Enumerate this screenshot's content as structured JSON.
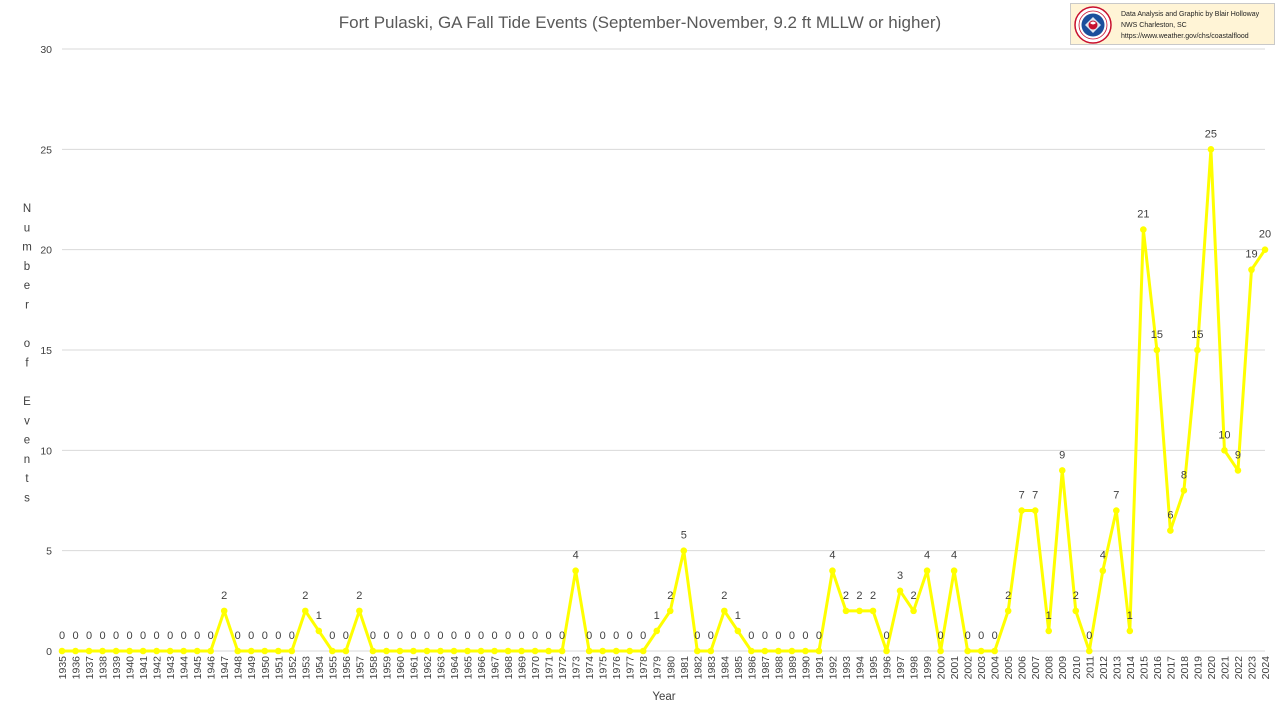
{
  "credit": {
    "line1": "Data Analysis and Graphic by Blair Holloway",
    "line2": "NWS Charleston, SC",
    "line3": "https://www.weather.gov/chs/coastalflood"
  },
  "chart_data": {
    "type": "line",
    "title": "Fort Pulaski, GA Fall Tide Events (September-November, 9.2 ft MLLW or higher)",
    "xlabel": "Year",
    "ylabel": "Number of Events",
    "ylim": [
      0,
      30
    ],
    "yticks": [
      0,
      5,
      10,
      15,
      20,
      25,
      30
    ],
    "grid": true,
    "legend": "none",
    "line_color": "#ffff00",
    "x": [
      "1935",
      "1936",
      "1937",
      "1938",
      "1939",
      "1940",
      "1941",
      "1942",
      "1943",
      "1944",
      "1945",
      "1946",
      "1947",
      "1948",
      "1949",
      "1950",
      "1951",
      "1952",
      "1953",
      "1954",
      "1955",
      "1956",
      "1957",
      "1958",
      "1959",
      "1960",
      "1961",
      "1962",
      "1963",
      "1964",
      "1965",
      "1966",
      "1967",
      "1968",
      "1969",
      "1970",
      "1971",
      "1972",
      "1973",
      "1974",
      "1975",
      "1976",
      "1977",
      "1978",
      "1979",
      "1980",
      "1981",
      "1982",
      "1983",
      "1984",
      "1985",
      "1986",
      "1987",
      "1988",
      "1989",
      "1990",
      "1991",
      "1992",
      "1993",
      "1994",
      "1995",
      "1996",
      "1997",
      "1998",
      "1999",
      "2000",
      "2001",
      "2002",
      "2003",
      "2004",
      "2005",
      "2006",
      "2007",
      "2008",
      "2009",
      "2010",
      "2011",
      "2012",
      "2013",
      "2014",
      "2015",
      "2016",
      "2017",
      "2018",
      "2019",
      "2020",
      "2021",
      "2022",
      "2023",
      "2024"
    ],
    "series": [
      {
        "values": [
          0,
          0,
          0,
          0,
          0,
          0,
          0,
          0,
          0,
          0,
          0,
          0,
          2,
          0,
          0,
          0,
          0,
          0,
          2,
          1,
          0,
          0,
          2,
          0,
          0,
          0,
          0,
          0,
          0,
          0,
          0,
          0,
          0,
          0,
          0,
          0,
          0,
          0,
          4,
          0,
          0,
          0,
          0,
          0,
          1,
          2,
          5,
          0,
          0,
          2,
          1,
          0,
          0,
          0,
          0,
          0,
          0,
          4,
          2,
          2,
          2,
          0,
          3,
          2,
          4,
          0,
          4,
          0,
          0,
          0,
          2,
          7,
          7,
          1,
          9,
          2,
          0,
          4,
          7,
          1,
          21,
          15,
          6,
          8,
          15,
          25,
          10,
          9,
          19,
          20
        ],
        "data_labels": [
          true,
          true,
          true,
          true,
          true,
          true,
          true,
          true,
          true,
          true,
          true,
          true,
          true,
          true,
          true,
          true,
          true,
          true,
          true,
          true,
          true,
          true,
          true,
          true,
          true,
          true,
          true,
          true,
          true,
          true,
          true,
          true,
          true,
          true,
          true,
          true,
          true,
          true,
          true,
          true,
          true,
          true,
          true,
          true,
          true,
          true,
          true,
          true,
          true,
          true,
          true,
          true,
          true,
          true,
          true,
          true,
          true,
          true,
          true,
          true,
          true,
          true,
          true,
          true,
          true,
          true,
          true,
          true,
          true,
          true,
          true,
          true,
          true,
          true,
          true,
          true,
          true,
          true,
          true,
          true,
          true,
          true,
          true,
          true,
          true,
          true,
          true,
          true,
          true,
          true
        ]
      }
    ]
  }
}
